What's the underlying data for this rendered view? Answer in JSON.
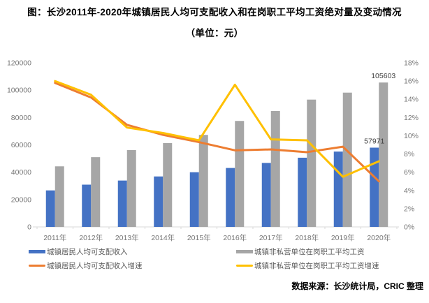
{
  "title": {
    "line1": "图：长沙2011年-2020年城镇居民人均可支配收入和在岗职工平均工资绝对量及变动情况",
    "line2": "（单位：元）"
  },
  "source": "数据来源：长沙统计局，CRIC 整理",
  "colors": {
    "income_bar": "#4472C4",
    "wage_bar": "#A6A6A6",
    "income_line": "#ED7D31",
    "wage_line": "#FFC000",
    "axis_text": "#767676",
    "axis_line": "#D9D9D9",
    "data_label": "#404040"
  },
  "legend": [
    {
      "label": "城镇居民人均可支配收入",
      "color": "#4472C4",
      "type": "bar"
    },
    {
      "label": "城镇非私营单位在岗职工平均工资",
      "color": "#A6A6A6",
      "type": "bar"
    },
    {
      "label": "城镇居民人均可支配收入增速",
      "color": "#ED7D31",
      "type": "line"
    },
    {
      "label": "城镇非私营单位在岗职工平均工资增速",
      "color": "#FFC000",
      "type": "line"
    }
  ],
  "chart_data": {
    "type": "bar+line combo",
    "title": "图：长沙2011年-2020年城镇居民人均可支配收入和在岗职工平均工资绝对量及变动情况",
    "unit": "元",
    "grid": false,
    "legend_position": "bottom",
    "categories": [
      "2011年",
      "2012年",
      "2013年",
      "2014年",
      "2015年",
      "2016年",
      "2017年",
      "2018年",
      "2019年",
      "2020年"
    ],
    "series": [
      {
        "name": "城镇居民人均可支配收入",
        "type": "bar",
        "axis": "left",
        "color": "#4472C4",
        "values": [
          26700,
          30900,
          33900,
          36900,
          40000,
          43100,
          46800,
          50600,
          55100,
          57971
        ]
      },
      {
        "name": "城镇非私营单位在岗职工平均工资",
        "type": "bar",
        "axis": "left",
        "color": "#A6A6A6",
        "values": [
          44300,
          51000,
          56200,
          61300,
          67300,
          77500,
          84800,
          93100,
          98200,
          105603
        ]
      },
      {
        "name": "城镇居民人均可支配收入增速",
        "type": "line",
        "axis": "right",
        "color": "#ED7D31",
        "values": [
          15.8,
          14.2,
          11.2,
          10.1,
          9.3,
          8.4,
          8.5,
          8.2,
          8.8,
          5.0
        ]
      },
      {
        "name": "城镇非私营单位在岗职工平均工资增速",
        "type": "line",
        "axis": "right",
        "color": "#FFC000",
        "values": [
          16.0,
          14.5,
          10.9,
          10.3,
          9.5,
          15.6,
          9.6,
          9.5,
          5.5,
          7.2
        ]
      }
    ],
    "left_axis": {
      "min": 0,
      "max": 120000,
      "ticks": [
        "0",
        "20000",
        "40000",
        "60000",
        "80000",
        "100000",
        "120000"
      ]
    },
    "right_axis": {
      "min": 0,
      "max": 18,
      "ticks": [
        "0%",
        "2%",
        "4%",
        "6%",
        "8%",
        "10%",
        "12%",
        "14%",
        "16%",
        "18%"
      ]
    },
    "data_labels": [
      {
        "series": 1,
        "index": 9,
        "text": "105603"
      },
      {
        "series": 0,
        "index": 9,
        "text": "57971"
      }
    ]
  }
}
